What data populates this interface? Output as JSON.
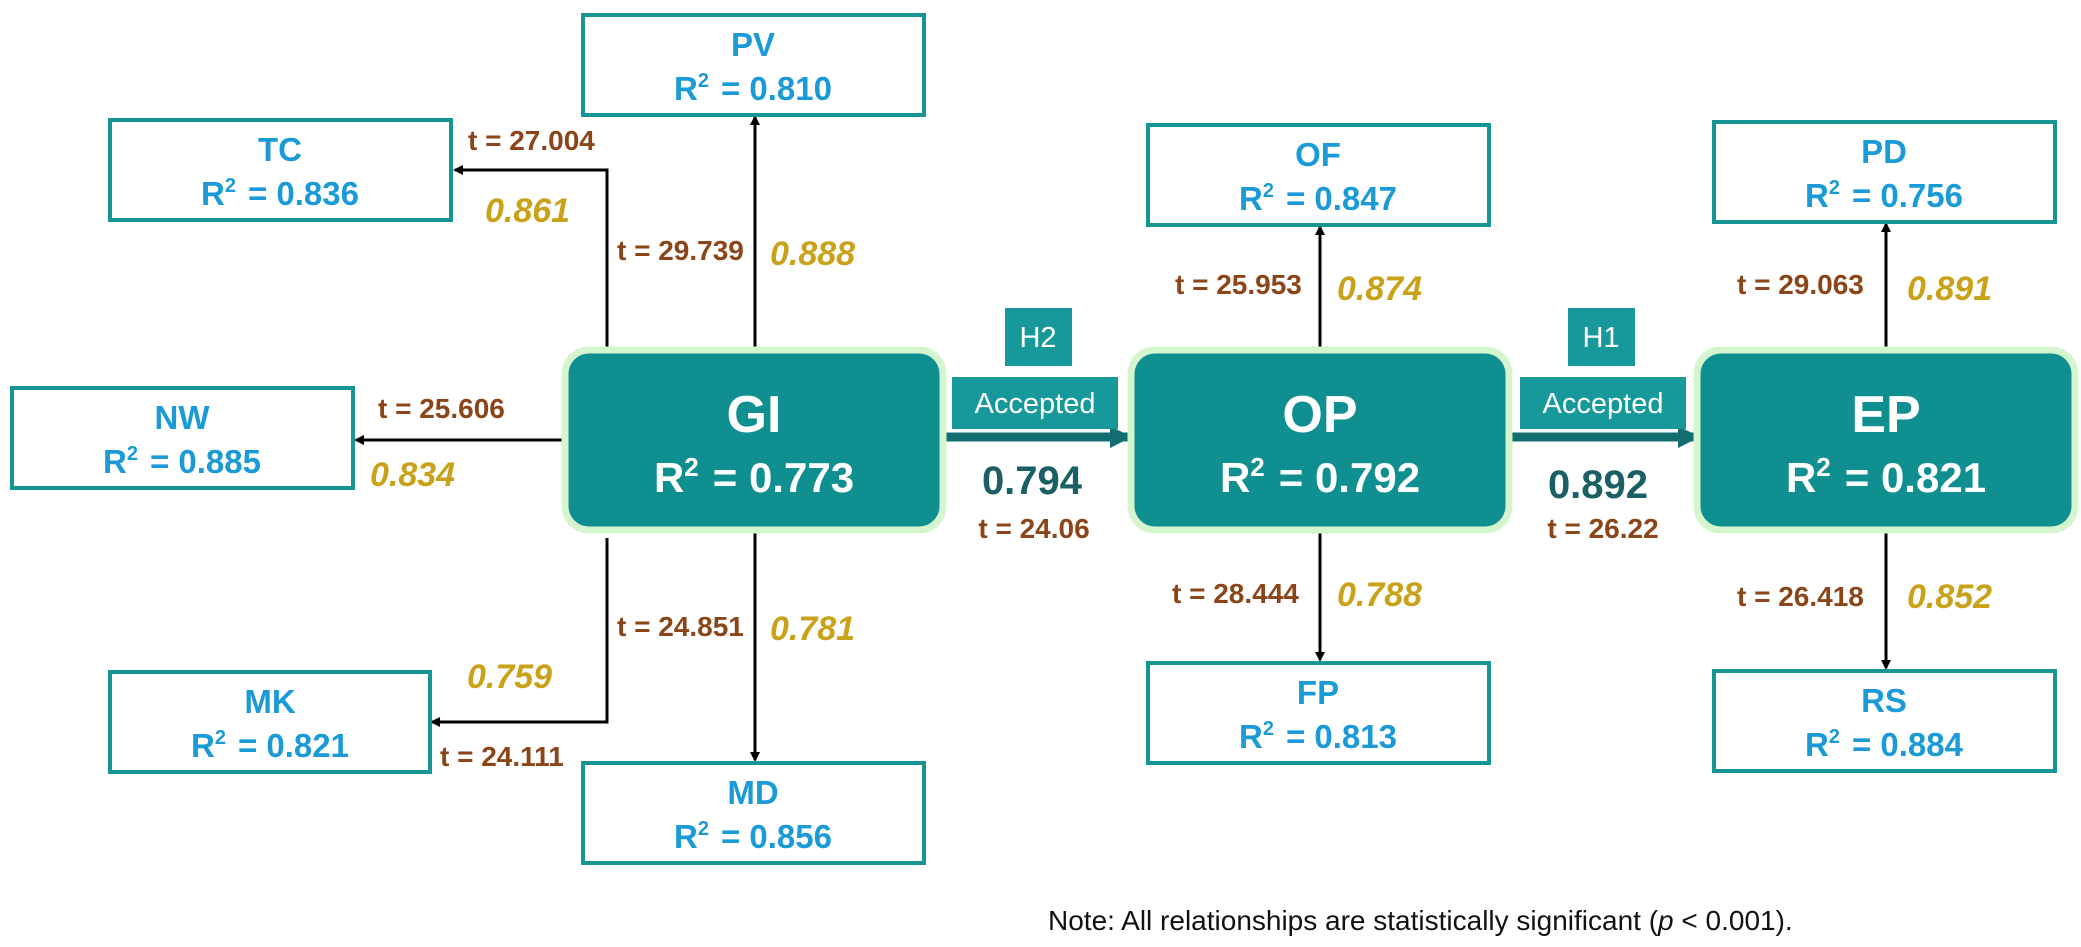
{
  "r2_symbol": "R",
  "r2_sup": "2",
  "latents": [
    {
      "id": "GI",
      "label": "GI",
      "r2": "= 0.773"
    },
    {
      "id": "OP",
      "label": "OP",
      "r2": "= 0.792"
    },
    {
      "id": "EP",
      "label": "EP",
      "r2": "= 0.821"
    }
  ],
  "indicators": [
    {
      "id": "PV",
      "label": "PV",
      "r2": "= 0.810",
      "loading": "0.888",
      "t": "t = 29.739"
    },
    {
      "id": "TC",
      "label": "TC",
      "r2": "= 0.836",
      "loading": "0.861",
      "t": "t = 27.004"
    },
    {
      "id": "NW",
      "label": "NW",
      "r2": "= 0.885",
      "loading": "0.834",
      "t": "t = 25.606"
    },
    {
      "id": "MK",
      "label": "MK",
      "r2": "= 0.821",
      "loading": "0.759",
      "t": "t = 24.111"
    },
    {
      "id": "MD",
      "label": "MD",
      "r2": "= 0.856",
      "loading": "0.781",
      "t": "t = 24.851"
    },
    {
      "id": "OF",
      "label": "OF",
      "r2": "= 0.847",
      "loading": "0.874",
      "t": "t = 25.953"
    },
    {
      "id": "FP",
      "label": "FP",
      "r2": "= 0.813",
      "loading": "0.788",
      "t": "t = 28.444"
    },
    {
      "id": "PD",
      "label": "PD",
      "r2": "= 0.756",
      "loading": "0.891",
      "t": "t = 29.063"
    },
    {
      "id": "RS",
      "label": "RS",
      "r2": "= 0.884",
      "loading": "0.852",
      "t": "t = 26.418"
    }
  ],
  "paths": [
    {
      "id": "GI-OP",
      "hypothesis": "H2",
      "status": "Accepted",
      "coefficient": "0.794",
      "t": "t = 24.06"
    },
    {
      "id": "OP-EP",
      "hypothesis": "H1",
      "status": "Accepted",
      "coefficient": "0.892",
      "t": "t = 26.22"
    }
  ],
  "note": {
    "prefix": "Note: All relationships are statistically significant (",
    "p": "p",
    "suffix": " < 0.001)."
  },
  "colors": {
    "latent_fill": "#0f8f8f",
    "latent_glow": "#d5f5cf",
    "indicator_border": "#179494",
    "indicator_text": "#1a9ad6",
    "t_value": "#8b4518",
    "loading": "#c9a21a",
    "badge_fill": "#17999c",
    "path_arrow": "#136e72",
    "path_coefficient": "#1a5f63"
  }
}
